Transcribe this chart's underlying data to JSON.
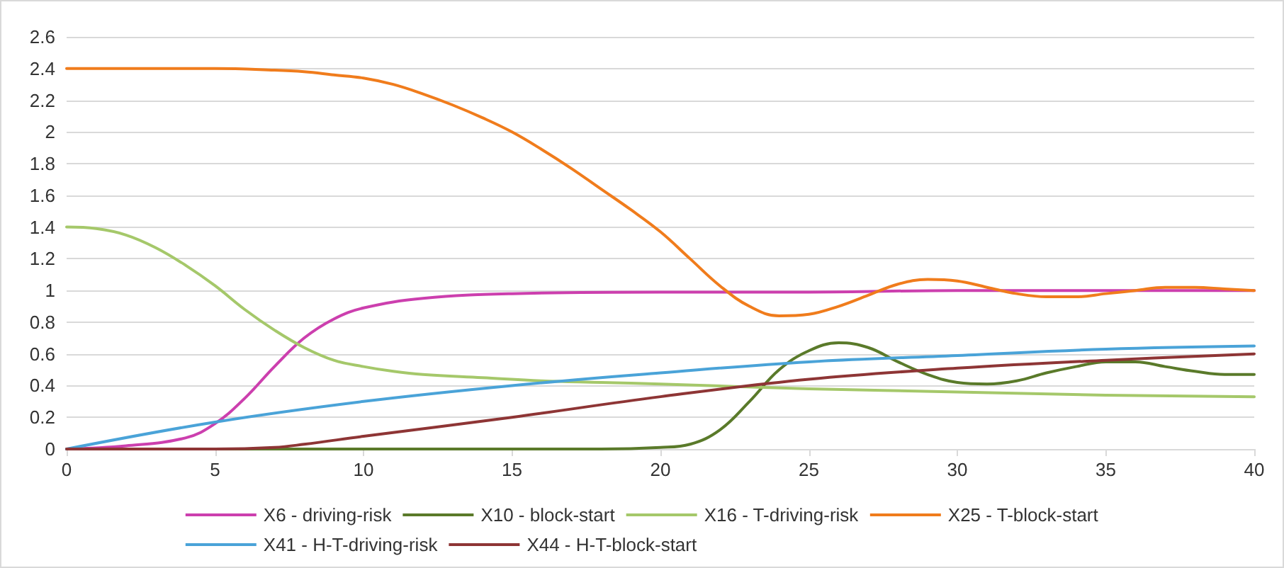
{
  "chart_data": {
    "type": "line",
    "xlim": [
      0,
      40
    ],
    "xticks": [
      0,
      5,
      10,
      15,
      20,
      25,
      30,
      35,
      40
    ],
    "ylim": [
      0,
      2.6
    ],
    "yticks": [
      0,
      0.2,
      0.4,
      0.6,
      0.8,
      1,
      1.2,
      1.4,
      1.6,
      1.8,
      2,
      2.2,
      2.4,
      2.6
    ],
    "grid": "y",
    "legend": "bottom",
    "marker": "none",
    "line_style": "solid",
    "series": [
      {
        "name": "X6 - driving-risk",
        "color": "#cc3fae",
        "x": [
          0,
          2,
          4,
          5,
          6,
          7,
          8,
          9,
          10,
          12,
          15,
          20,
          25,
          30,
          40
        ],
        "values": [
          0,
          0.02,
          0.07,
          0.16,
          0.32,
          0.52,
          0.7,
          0.82,
          0.89,
          0.95,
          0.98,
          0.99,
          0.99,
          1,
          1
        ]
      },
      {
        "name": "X10 - block-start",
        "color": "#5a7a2a",
        "x": [
          0,
          10,
          18,
          20,
          21,
          22,
          23,
          24,
          25,
          26,
          27,
          28,
          29,
          30,
          31,
          32,
          33,
          34,
          35,
          36,
          37,
          38,
          39,
          40
        ],
        "values": [
          0,
          0,
          0,
          0.01,
          0.03,
          0.12,
          0.3,
          0.5,
          0.62,
          0.67,
          0.64,
          0.55,
          0.47,
          0.42,
          0.41,
          0.43,
          0.48,
          0.52,
          0.55,
          0.55,
          0.52,
          0.49,
          0.47,
          0.47
        ]
      },
      {
        "name": "X16 - T-driving-risk",
        "color": "#a5c86a",
        "x": [
          0,
          1,
          2,
          3,
          4,
          5,
          6,
          7,
          8,
          9,
          10,
          11,
          12,
          14,
          16,
          18,
          20,
          25,
          30,
          35,
          40
        ],
        "values": [
          1.4,
          1.39,
          1.35,
          1.27,
          1.16,
          1.03,
          0.88,
          0.75,
          0.64,
          0.56,
          0.52,
          0.49,
          0.47,
          0.45,
          0.43,
          0.42,
          0.41,
          0.38,
          0.36,
          0.34,
          0.33
        ]
      },
      {
        "name": "X25 - T-block-start",
        "color": "#f07c1c",
        "x": [
          0,
          5,
          7,
          8,
          9,
          10,
          11,
          12,
          13,
          14,
          15,
          16,
          17,
          18,
          19,
          20,
          21,
          22,
          23,
          24,
          25,
          26,
          27,
          28,
          29,
          30,
          31,
          32,
          33,
          34,
          35,
          36,
          37,
          38,
          39,
          40
        ],
        "values": [
          2.4,
          2.4,
          2.39,
          2.38,
          2.36,
          2.34,
          2.3,
          2.24,
          2.17,
          2.09,
          2,
          1.89,
          1.77,
          1.64,
          1.51,
          1.37,
          1.2,
          1.03,
          0.9,
          0.84,
          0.85,
          0.9,
          0.97,
          1.04,
          1.07,
          1.06,
          1.02,
          0.98,
          0.96,
          0.96,
          0.98,
          1,
          1.02,
          1.02,
          1.01,
          1
        ]
      },
      {
        "name": "X41 - H-T-driving-risk",
        "color": "#4aa3d8",
        "x": [
          0,
          5,
          10,
          15,
          20,
          25,
          30,
          35,
          40
        ],
        "values": [
          0,
          0.17,
          0.3,
          0.4,
          0.48,
          0.55,
          0.59,
          0.63,
          0.65
        ]
      },
      {
        "name": "X44 - H-T-block-start",
        "color": "#8e3535",
        "x": [
          0,
          5,
          7,
          8,
          10,
          15,
          20,
          25,
          30,
          35,
          40
        ],
        "values": [
          0,
          0,
          0.01,
          0.03,
          0.08,
          0.2,
          0.33,
          0.44,
          0.51,
          0.56,
          0.6
        ]
      }
    ]
  }
}
